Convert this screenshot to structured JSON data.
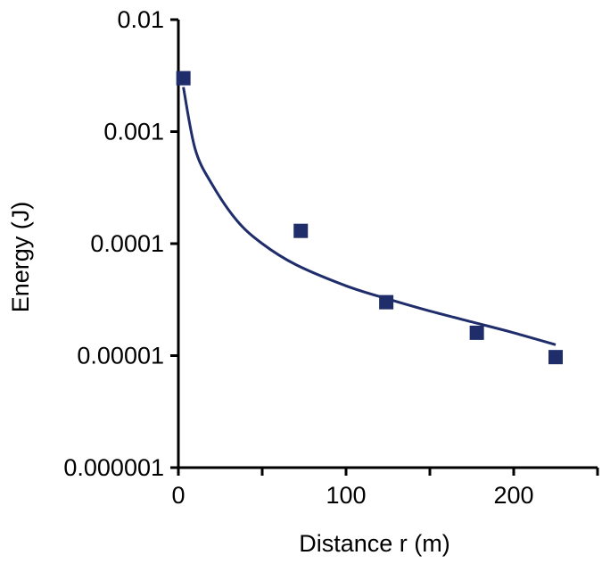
{
  "chart_data": {
    "type": "scatter",
    "title": "",
    "xlabel": "Distance r (m)",
    "ylabel": "Energy (J)",
    "x_scale": "linear",
    "y_scale": "log",
    "xlim": [
      0,
      250
    ],
    "ylim": [
      1e-06,
      0.01
    ],
    "x_ticks": [
      {
        "value": 0,
        "label": "0"
      },
      {
        "value": 100,
        "label": "100"
      },
      {
        "value": 200,
        "label": "200"
      }
    ],
    "y_ticks": [
      {
        "value": 1e-06,
        "label": "0.000001"
      },
      {
        "value": 1e-05,
        "label": "0.00001"
      },
      {
        "value": 0.0001,
        "label": "0.0001"
      },
      {
        "value": 0.001,
        "label": "0.001"
      },
      {
        "value": 0.01,
        "label": "0.01"
      }
    ],
    "grid": false,
    "legend": "none",
    "series": [
      {
        "kind": "points",
        "marker": "square",
        "color": "#1f2d6b",
        "points": [
          {
            "x": 3,
            "y": 0.003
          },
          {
            "x": 73,
            "y": 0.00013
          },
          {
            "x": 124,
            "y": 3e-05
          },
          {
            "x": 178,
            "y": 1.6e-05
          },
          {
            "x": 225,
            "y": 9.7e-06
          }
        ]
      },
      {
        "kind": "trendline",
        "color": "#1f2d6b",
        "points": [
          {
            "x": 3,
            "y": 0.0025
          },
          {
            "x": 10,
            "y": 0.0007
          },
          {
            "x": 20,
            "y": 0.00034
          },
          {
            "x": 35,
            "y": 0.00016
          },
          {
            "x": 50,
            "y": 0.0001
          },
          {
            "x": 70,
            "y": 6.5e-05
          },
          {
            "x": 100,
            "y": 4.2e-05
          },
          {
            "x": 125,
            "y": 3.2e-05
          },
          {
            "x": 150,
            "y": 2.5e-05
          },
          {
            "x": 175,
            "y": 2e-05
          },
          {
            "x": 200,
            "y": 1.6e-05
          },
          {
            "x": 225,
            "y": 1.25e-05
          }
        ]
      }
    ]
  }
}
